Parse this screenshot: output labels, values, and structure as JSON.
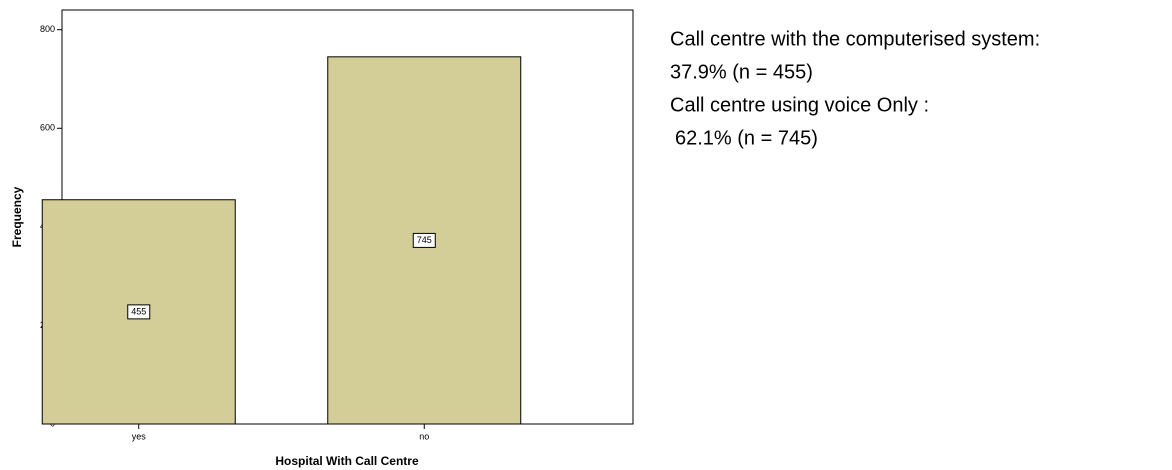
{
  "chart_data": {
    "type": "bar",
    "x_label": "Hospital With Call Centre",
    "y_label": "Frequency",
    "categories": [
      "yes",
      "no"
    ],
    "values": [
      455,
      745
    ],
    "color": "#d3ce97",
    "ylim": [
      0,
      840
    ],
    "yticks": [
      0,
      200,
      400,
      600,
      800
    ],
    "annotations": [
      "Call centre with the computerised system:",
      "37.9% (n = 455)",
      "Call centre using voice Only :",
      "62.1% (n = 745)"
    ]
  }
}
